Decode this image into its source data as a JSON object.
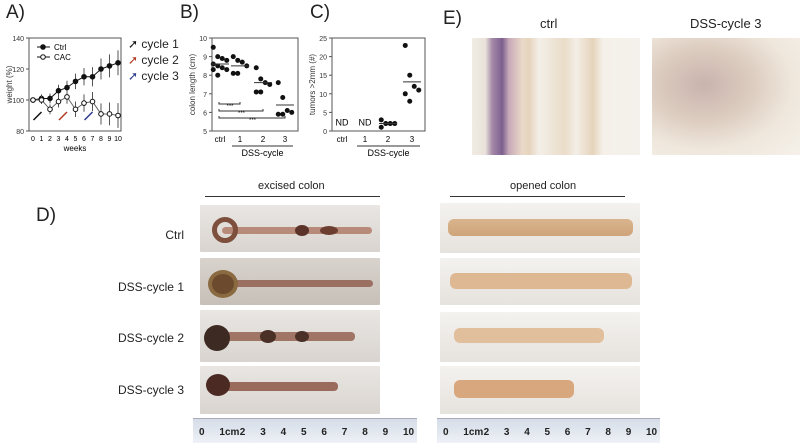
{
  "panels": {
    "a": "A)",
    "b": "B)",
    "c": "C)",
    "d": "D)",
    "e": "E)"
  },
  "cycle_legend": [
    {
      "label": "cycle 1",
      "color": "#111111"
    },
    {
      "label": "cycle 2",
      "color": "#b03a22"
    },
    {
      "label": "cycle 3",
      "color": "#2a3a8c"
    }
  ],
  "chart_data": [
    {
      "type": "line",
      "ylabel": "weight  (%)",
      "xlabel": "weeks",
      "ylim": [
        80,
        140
      ],
      "yticks": [
        80,
        100,
        120,
        140
      ],
      "x": [
        0,
        1,
        2,
        3,
        4,
        5,
        6,
        7,
        8,
        9,
        10
      ],
      "series": [
        {
          "name": "Ctrl",
          "marker": "filled",
          "values": [
            100,
            101,
            101,
            106,
            108,
            112,
            115,
            115,
            120,
            122,
            124
          ]
        },
        {
          "name": "CAC",
          "marker": "open",
          "values": [
            100,
            100,
            94,
            99,
            102,
            94,
            98,
            99,
            91,
            91,
            90
          ]
        }
      ],
      "cycle_arrows_at_weeks": [
        1,
        4,
        7
      ]
    },
    {
      "type": "scatter",
      "ylabel": "colon length (cm)",
      "xlabel": "DSS-cycle",
      "categories": [
        "ctrl",
        "1",
        "2",
        "3"
      ],
      "ylim": [
        5,
        10
      ],
      "yticks": [
        5,
        6,
        7,
        8,
        9,
        10
      ],
      "points": [
        [
          9.5,
          9.0,
          8.9,
          8.8,
          8.6,
          8.5,
          8.4,
          8.3,
          8.3,
          8.0
        ],
        [
          9.0,
          8.8,
          8.7,
          8.5,
          8.1,
          8.1
        ],
        [
          8.4,
          7.8,
          7.6,
          7.5,
          7.1,
          7.1
        ],
        [
          7.6,
          6.8,
          6.1,
          6.0,
          5.9,
          5.9
        ]
      ],
      "means": [
        8.6,
        8.5,
        7.6,
        6.4
      ],
      "significance": [
        {
          "from": "ctrl",
          "to": "1",
          "label": "***"
        },
        {
          "from": "ctrl",
          "to": "2",
          "label": "***"
        },
        {
          "from": "ctrl",
          "to": "3",
          "label": "***"
        }
      ]
    },
    {
      "type": "scatter",
      "ylabel": "tumors >2mm (#)",
      "xlabel": "DSS-cycle",
      "categories": [
        "ctrl",
        "1",
        "2",
        "3"
      ],
      "ylim": [
        0,
        25
      ],
      "yticks": [
        0,
        5,
        10,
        15,
        20,
        25
      ],
      "points": [
        [],
        [],
        [
          3,
          2,
          2,
          2,
          1
        ],
        [
          23,
          15,
          12,
          11,
          10,
          8
        ]
      ],
      "means": [
        null,
        null,
        2,
        13.2
      ],
      "annotations": [
        "ND",
        "ND",
        "",
        ""
      ]
    }
  ],
  "panel_e": {
    "ctrl": "ctrl",
    "dss": "DSS-cycle 3"
  },
  "panel_d": {
    "excised": "excised colon",
    "opened": "opened colon",
    "rows": [
      "Ctrl",
      "DSS-cycle 1",
      "DSS-cycle 2",
      "DSS-cycle 3"
    ],
    "ruler": [
      "0",
      "1cm",
      "2",
      "3",
      "4",
      "5",
      "6",
      "7",
      "8",
      "9",
      "10"
    ]
  }
}
